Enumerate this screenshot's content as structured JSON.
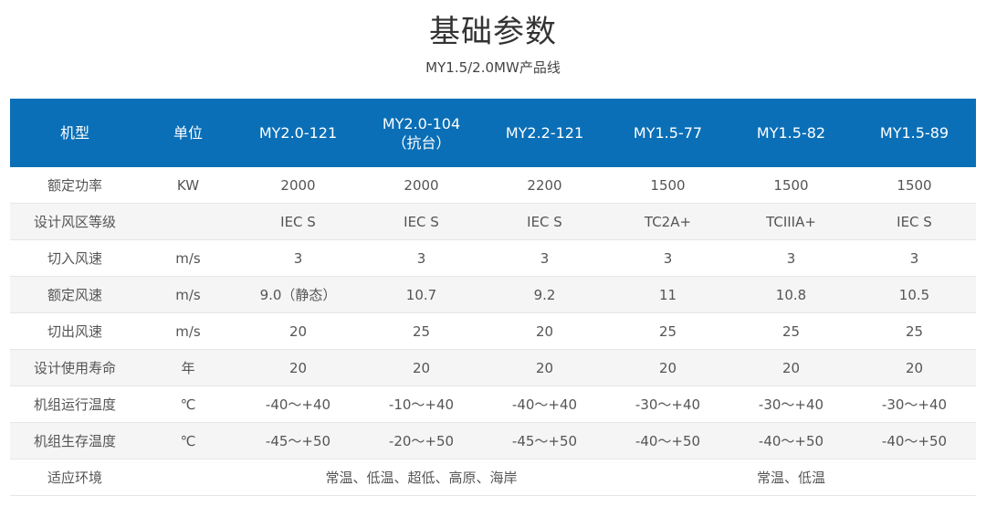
{
  "page": {
    "title": "基础参数",
    "subtitle": "MY1.5/2.0MW产品线"
  },
  "colors": {
    "header_bg": "#0a6fb7",
    "header_text": "#ffffff",
    "row_alt_bg": "#f5f5f5",
    "text": "#555555"
  },
  "table": {
    "headers": {
      "model": "机型",
      "unit": "单位",
      "m1": "MY2.0-121",
      "m2_line1": "MY2.0-104",
      "m2_line2": "（抗台）",
      "m3": "MY2.2-121",
      "m4": "MY1.5-77",
      "m5": "MY1.5-82",
      "m6": "MY1.5-89"
    },
    "rows": [
      {
        "label": "额定功率",
        "unit": "KW",
        "v1": "2000",
        "v2": "2000",
        "v3": "2200",
        "v4": "1500",
        "v5": "1500",
        "v6": "1500"
      },
      {
        "label": "设计风区等级",
        "unit": "",
        "v1": "IEC S",
        "v2": "IEC S",
        "v3": "IEC S",
        "v4": "TC2A+",
        "v5": "TCIIIA+",
        "v6": "IEC S"
      },
      {
        "label": "切入风速",
        "unit": "m/s",
        "v1": "3",
        "v2": "3",
        "v3": "3",
        "v4": "3",
        "v5": "3",
        "v6": "3"
      },
      {
        "label": "额定风速",
        "unit": "m/s",
        "v1": "9.0（静态）",
        "v2": "10.7",
        "v3": "9.2",
        "v4": "11",
        "v5": "10.8",
        "v6": "10.5"
      },
      {
        "label": "切出风速",
        "unit": "m/s",
        "v1": "20",
        "v2": "25",
        "v3": "20",
        "v4": "25",
        "v5": "25",
        "v6": "25"
      },
      {
        "label": "设计使用寿命",
        "unit": "年",
        "v1": "20",
        "v2": "20",
        "v3": "20",
        "v4": "20",
        "v5": "20",
        "v6": "20"
      },
      {
        "label": "机组运行温度",
        "unit": "℃",
        "v1": "-40～+40",
        "v2": "-10～+40",
        "v3": "-40～+40",
        "v4": "-30～+40",
        "v5": "-30～+40",
        "v6": "-30～+40"
      },
      {
        "label": "机组生存温度",
        "unit": "℃",
        "v1": "-45～+50",
        "v2": "-20～+50",
        "v3": "-45～+50",
        "v4": "-40～+50",
        "v5": "-40～+50",
        "v6": "-40～+50"
      }
    ],
    "env_row": {
      "label": "适应环境",
      "group1": "常温、低温、超低、高原、海岸",
      "group2": "常温、低温"
    }
  }
}
